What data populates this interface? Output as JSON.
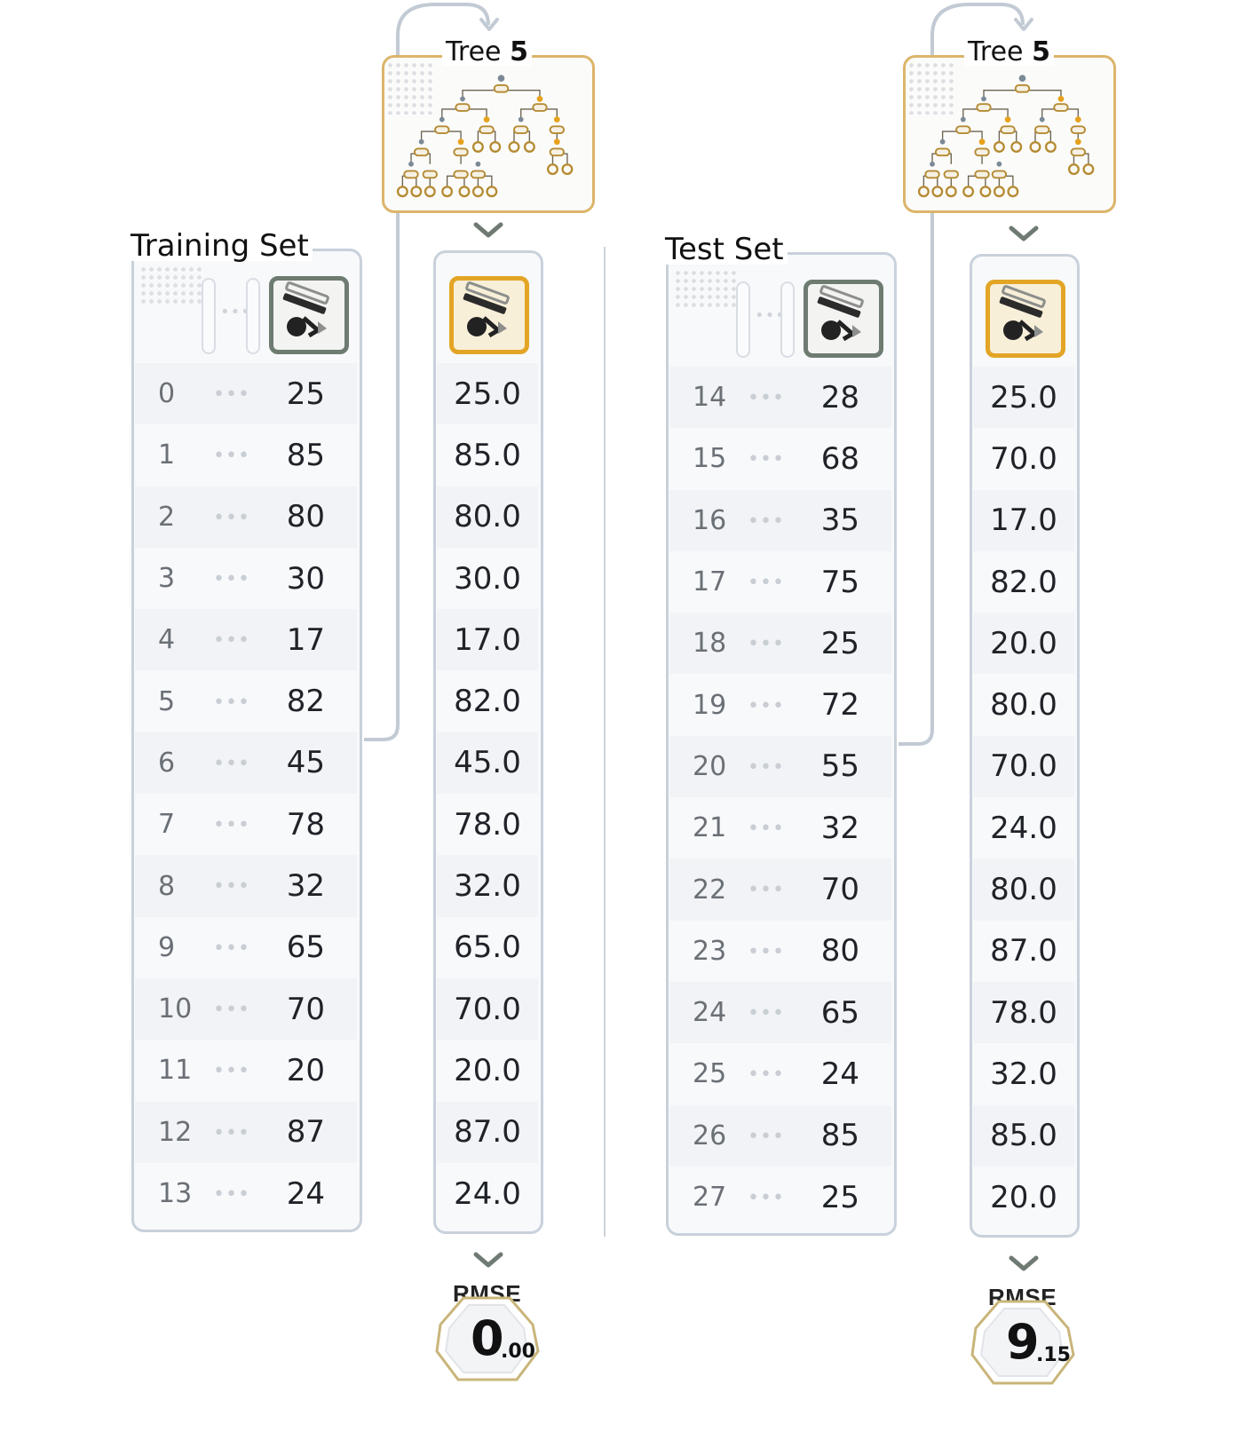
{
  "training": {
    "title": "Training Set",
    "tree_label_prefix": "Tree",
    "tree_number": "5",
    "rows": [
      {
        "index": "0",
        "value": "25",
        "prediction": "25.0"
      },
      {
        "index": "1",
        "value": "85",
        "prediction": "85.0"
      },
      {
        "index": "2",
        "value": "80",
        "prediction": "80.0"
      },
      {
        "index": "3",
        "value": "30",
        "prediction": "30.0"
      },
      {
        "index": "4",
        "value": "17",
        "prediction": "17.0"
      },
      {
        "index": "5",
        "value": "82",
        "prediction": "82.0"
      },
      {
        "index": "6",
        "value": "45",
        "prediction": "45.0"
      },
      {
        "index": "7",
        "value": "78",
        "prediction": "78.0"
      },
      {
        "index": "8",
        "value": "32",
        "prediction": "32.0"
      },
      {
        "index": "9",
        "value": "65",
        "prediction": "65.0"
      },
      {
        "index": "10",
        "value": "70",
        "prediction": "70.0"
      },
      {
        "index": "11",
        "value": "20",
        "prediction": "20.0"
      },
      {
        "index": "12",
        "value": "87",
        "prediction": "87.0"
      },
      {
        "index": "13",
        "value": "24",
        "prediction": "24.0"
      }
    ],
    "rmse_label": "RMSE",
    "rmse_main": "0",
    "rmse_sub": ".00"
  },
  "test": {
    "title": "Test Set",
    "tree_label_prefix": "Tree",
    "tree_number": "5",
    "rows": [
      {
        "index": "14",
        "value": "28",
        "prediction": "25.0"
      },
      {
        "index": "15",
        "value": "68",
        "prediction": "70.0"
      },
      {
        "index": "16",
        "value": "35",
        "prediction": "17.0"
      },
      {
        "index": "17",
        "value": "75",
        "prediction": "82.0"
      },
      {
        "index": "18",
        "value": "25",
        "prediction": "20.0"
      },
      {
        "index": "19",
        "value": "72",
        "prediction": "80.0"
      },
      {
        "index": "20",
        "value": "55",
        "prediction": "70.0"
      },
      {
        "index": "21",
        "value": "32",
        "prediction": "24.0"
      },
      {
        "index": "22",
        "value": "70",
        "prediction": "80.0"
      },
      {
        "index": "23",
        "value": "80",
        "prediction": "87.0"
      },
      {
        "index": "24",
        "value": "65",
        "prediction": "78.0"
      },
      {
        "index": "25",
        "value": "24",
        "prediction": "32.0"
      },
      {
        "index": "26",
        "value": "85",
        "prediction": "85.0"
      },
      {
        "index": "27",
        "value": "25",
        "prediction": "20.0"
      }
    ],
    "rmse_label": "RMSE",
    "rmse_main": "9",
    "rmse_sub": ".15"
  },
  "ellipsis": "•••",
  "icons": {
    "target_column": "target-value-icon",
    "tree": "decision-tree-icon",
    "chevron": "chevron-down-icon",
    "badge": "octagon-badge-icon"
  },
  "colors": {
    "panel_border": "#c9d1db",
    "tree_border": "#dcb56a",
    "target_icon_border": "#6d7b70",
    "prediction_icon_border": "#e3a526",
    "badge_border": "#c9b57a"
  }
}
